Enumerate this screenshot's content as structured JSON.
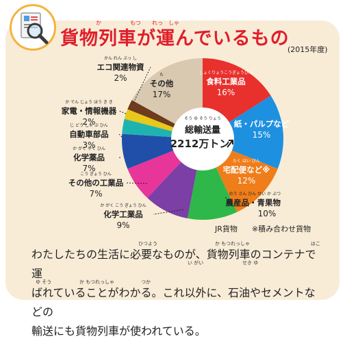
{
  "header": {
    "title": "貨物列車が運んでいるもの",
    "title_ruby": [
      "か",
      "もつ",
      "れっ",
      "しゃ"
    ],
    "year": "(2015年度)"
  },
  "chart_data": {
    "type": "pie",
    "variant": "donut",
    "center_label": "総輸送量",
    "center_label_ruby": "そう ゆ そう りょう",
    "center_value": "2212万トン",
    "slices": [
      {
        "name": "食料工業品",
        "ruby": "しょくりょうこうぎょうひん",
        "value": 16,
        "label": "16%",
        "color": "#e8302c"
      },
      {
        "name": "紙・パルプなど",
        "value": 15,
        "label": "15%",
        "color": "#1e90e0"
      },
      {
        "name": "宅配便など※",
        "ruby": "たく はい びん",
        "value": 12,
        "label": "12%",
        "color": "#ef7d1a"
      },
      {
        "name": "農産品・青果物",
        "ruby": "のう さん ひん せい か ぶつ",
        "value": 10,
        "label": "10%",
        "color": "#2eb84a"
      },
      {
        "name": "化学工業品",
        "ruby": "か がく こう ぎょう ひん",
        "value": 9,
        "label": "9%",
        "color": "#7b3fa6"
      },
      {
        "name": "その他の工業品",
        "ruby": "こう ぎょう ひん",
        "value": 7,
        "label": "7%",
        "color": "#e8359a"
      },
      {
        "name": "化学薬品",
        "ruby": "か がく やく ひん",
        "value": 7,
        "label": "7%",
        "color": "#1f4fa8"
      },
      {
        "name": "自動車部品",
        "ruby": "じ どう しゃ ぶ ひん",
        "value": 3,
        "label": "3%",
        "color": "#1fb3b0"
      },
      {
        "name": "家電・情報機器",
        "ruby": "か でん じょう ほう き き",
        "value": 2,
        "label": "2%",
        "color": "#e8c81a"
      },
      {
        "name": "エコ関連物資",
        "ruby": "かん れん ぶっ し",
        "value": 2,
        "label": "2%",
        "color": "#6e3b1c"
      },
      {
        "name": "その他",
        "ruby": "た",
        "value": 17,
        "label": "17%",
        "color": "#d9c9b0"
      }
    ],
    "source": "JR貨物",
    "note": "※積み合わせ貨物"
  },
  "body": {
    "line1": "わたしたちの生活に必要なものが、貨物列車のコンテナで運",
    "line2": "ばれていることがわかる。これ以外に、石油やセメントなどの",
    "line3": "輸送にも貨物列車が使われている。",
    "ruby": [
      {
        "text": "ひつよう"
      },
      {
        "text": "か もつれっしゃ"
      },
      {
        "text": "はこ"
      },
      {
        "text": "い がい"
      },
      {
        "text": "せき ゆ"
      },
      {
        "text": "ゆ そう"
      },
      {
        "text": "か もつれっしゃ"
      },
      {
        "text": "つか"
      }
    ]
  },
  "icon": {
    "name": "magnifier-document-icon"
  }
}
